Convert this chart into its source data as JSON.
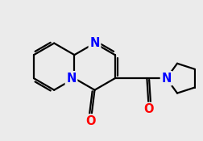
{
  "background_color": "#ebebeb",
  "atom_color_N": "#0000ff",
  "atom_color_O": "#ff0000",
  "atom_color_C": "#000000",
  "bond_lw": 1.6,
  "font_size_atom": 10.5,
  "xlim": [
    -2.0,
    2.8
  ],
  "ylim": [
    -1.6,
    1.6
  ]
}
